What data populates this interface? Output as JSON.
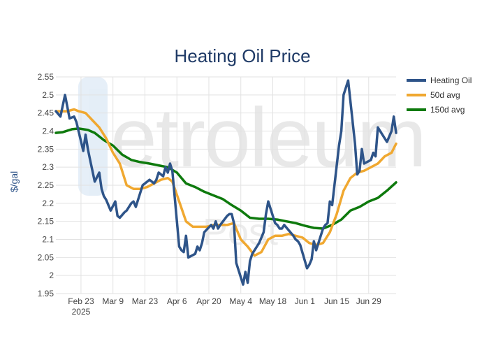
{
  "chart_data": {
    "type": "line",
    "title": "Heating Oil Price",
    "xlabel": "",
    "ylabel": "$/gal",
    "watermark": "Petroleum Post",
    "ylim": [
      1.95,
      2.55
    ],
    "y_ticks": [
      1.95,
      2,
      2.05,
      2.1,
      2.15,
      2.2,
      2.25,
      2.3,
      2.35,
      2.4,
      2.45,
      2.5,
      2.55
    ],
    "y_tick_labels": [
      "1.95",
      "2",
      "2.05",
      "2.1",
      "2.15",
      "2.2",
      "2.25",
      "2.3",
      "2.35",
      "2.4",
      "2.45",
      "2.5",
      "2.55"
    ],
    "x_range": [
      "2025-02-12",
      "2025-07-11"
    ],
    "x_ticks": [
      "2025-02-23",
      "2025-03-09",
      "2025-03-23",
      "2025-04-06",
      "2025-04-20",
      "2025-05-04",
      "2025-05-18",
      "2025-06-01",
      "2025-06-15",
      "2025-06-29"
    ],
    "x_tick_labels": [
      "Feb 23",
      "Mar 9",
      "Mar 23",
      "Apr 6",
      "Apr 20",
      "May 4",
      "May 18",
      "Jun 1",
      "Jun 15",
      "Jun 29"
    ],
    "x_tick_sublabels": [
      "2025",
      "",
      "",
      "",
      "",
      "",
      "",
      "",
      "",
      ""
    ],
    "grid": true,
    "legend_position": "top-right",
    "series": [
      {
        "name": "Heating Oil",
        "color": "#2e5489",
        "x": [
          "2025-02-12",
          "2025-02-14",
          "2025-02-16",
          "2025-02-18",
          "2025-02-20",
          "2025-02-21",
          "2025-02-24",
          "2025-02-25",
          "2025-02-26",
          "2025-02-27",
          "2025-02-28",
          "2025-03-01",
          "2025-03-03",
          "2025-03-04",
          "2025-03-05",
          "2025-03-06",
          "2025-03-08",
          "2025-03-10",
          "2025-03-11",
          "2025-03-12",
          "2025-03-14",
          "2025-03-15",
          "2025-03-17",
          "2025-03-18",
          "2025-03-19",
          "2025-03-22",
          "2025-03-25",
          "2025-03-26",
          "2025-03-27",
          "2025-03-28",
          "2025-03-29",
          "2025-03-31",
          "2025-04-01",
          "2025-04-02",
          "2025-04-03",
          "2025-04-04",
          "2025-04-07",
          "2025-04-08",
          "2025-04-09",
          "2025-04-10",
          "2025-04-11",
          "2025-04-14",
          "2025-04-15",
          "2025-04-16",
          "2025-04-17",
          "2025-04-18",
          "2025-04-21",
          "2025-04-22",
          "2025-04-23",
          "2025-04-24",
          "2025-04-25",
          "2025-04-28",
          "2025-04-29",
          "2025-04-30",
          "2025-05-01",
          "2025-05-02",
          "2025-05-05",
          "2025-05-06",
          "2025-05-07",
          "2025-05-08",
          "2025-05-09",
          "2025-05-12",
          "2025-05-13",
          "2025-05-14",
          "2025-05-15",
          "2025-05-16",
          "2025-05-19",
          "2025-05-20",
          "2025-05-21",
          "2025-05-22",
          "2025-05-23",
          "2025-05-27",
          "2025-05-28",
          "2025-05-29",
          "2025-05-30",
          "2025-06-02",
          "2025-06-03",
          "2025-06-04",
          "2025-06-05",
          "2025-06-06",
          "2025-06-09",
          "2025-06-10",
          "2025-06-11",
          "2025-06-12",
          "2025-06-13",
          "2025-06-16",
          "2025-06-17",
          "2025-06-18",
          "2025-06-19",
          "2025-06-20",
          "2025-06-23",
          "2025-06-24",
          "2025-06-25",
          "2025-06-26",
          "2025-06-27",
          "2025-06-30",
          "2025-07-01",
          "2025-07-02",
          "2025-07-03",
          "2025-07-07",
          "2025-07-08",
          "2025-07-09",
          "2025-07-10",
          "2025-07-11"
        ],
        "y": [
          2.455,
          2.44,
          2.5,
          2.435,
          2.44,
          2.425,
          2.345,
          2.39,
          2.35,
          2.32,
          2.29,
          2.26,
          2.285,
          2.24,
          2.22,
          2.21,
          2.18,
          2.205,
          2.165,
          2.16,
          2.175,
          2.18,
          2.2,
          2.205,
          2.19,
          2.25,
          2.265,
          2.26,
          2.255,
          2.265,
          2.285,
          2.275,
          2.3,
          2.285,
          2.31,
          2.29,
          2.08,
          2.07,
          2.065,
          2.11,
          2.05,
          2.06,
          2.08,
          2.07,
          2.09,
          2.12,
          2.14,
          2.13,
          2.15,
          2.13,
          2.14,
          2.165,
          2.17,
          2.17,
          2.145,
          2.035,
          1.975,
          2.01,
          1.98,
          2.04,
          2.06,
          2.09,
          2.105,
          2.12,
          2.17,
          2.205,
          2.145,
          2.14,
          2.13,
          2.13,
          2.14,
          2.11,
          2.1,
          2.095,
          2.085,
          2.02,
          2.03,
          2.045,
          2.095,
          2.07,
          2.13,
          2.14,
          2.145,
          2.205,
          2.195,
          2.36,
          2.4,
          2.5,
          2.52,
          2.54,
          2.365,
          2.28,
          2.29,
          2.35,
          2.31,
          2.32,
          2.34,
          2.33,
          2.41,
          2.37,
          2.385,
          2.4,
          2.44,
          2.395
        ]
      },
      {
        "name": "50d avg",
        "color": "#f0a830",
        "x": [
          "2025-02-12",
          "2025-02-14",
          "2025-02-17",
          "2025-02-20",
          "2025-02-22",
          "2025-02-25",
          "2025-02-28",
          "2025-03-03",
          "2025-03-06",
          "2025-03-09",
          "2025-03-12",
          "2025-03-15",
          "2025-03-18",
          "2025-03-21",
          "2025-03-24",
          "2025-03-27",
          "2025-03-30",
          "2025-04-02",
          "2025-04-04",
          "2025-04-07",
          "2025-04-10",
          "2025-04-13",
          "2025-04-16",
          "2025-04-19",
          "2025-04-22",
          "2025-04-25",
          "2025-04-28",
          "2025-05-01",
          "2025-05-04",
          "2025-05-07",
          "2025-05-10",
          "2025-05-13",
          "2025-05-16",
          "2025-05-19",
          "2025-05-22",
          "2025-05-25",
          "2025-05-28",
          "2025-05-31",
          "2025-06-03",
          "2025-06-06",
          "2025-06-09",
          "2025-06-12",
          "2025-06-15",
          "2025-06-18",
          "2025-06-21",
          "2025-06-24",
          "2025-06-27",
          "2025-06-30",
          "2025-07-03",
          "2025-07-06",
          "2025-07-09",
          "2025-07-11"
        ],
        "y": [
          2.455,
          2.455,
          2.455,
          2.46,
          2.455,
          2.45,
          2.43,
          2.41,
          2.38,
          2.34,
          2.31,
          2.25,
          2.24,
          2.24,
          2.245,
          2.255,
          2.265,
          2.27,
          2.26,
          2.205,
          2.15,
          2.135,
          2.135,
          2.135,
          2.14,
          2.14,
          2.14,
          2.145,
          2.1,
          2.08,
          2.055,
          2.065,
          2.1,
          2.11,
          2.11,
          2.115,
          2.11,
          2.105,
          2.09,
          2.085,
          2.09,
          2.12,
          2.17,
          2.235,
          2.27,
          2.285,
          2.29,
          2.3,
          2.31,
          2.33,
          2.34,
          2.365
        ]
      },
      {
        "name": "150d avg",
        "color": "#0e7a0d",
        "x": [
          "2025-02-12",
          "2025-02-15",
          "2025-02-19",
          "2025-02-22",
          "2025-02-26",
          "2025-03-01",
          "2025-03-05",
          "2025-03-09",
          "2025-03-13",
          "2025-03-17",
          "2025-03-21",
          "2025-03-25",
          "2025-03-29",
          "2025-04-02",
          "2025-04-06",
          "2025-04-10",
          "2025-04-14",
          "2025-04-18",
          "2025-04-22",
          "2025-04-26",
          "2025-04-30",
          "2025-05-04",
          "2025-05-08",
          "2025-05-12",
          "2025-05-16",
          "2025-05-20",
          "2025-05-24",
          "2025-05-28",
          "2025-06-01",
          "2025-06-05",
          "2025-06-09",
          "2025-06-13",
          "2025-06-17",
          "2025-06-21",
          "2025-06-25",
          "2025-06-29",
          "2025-07-03",
          "2025-07-07",
          "2025-07-11"
        ],
        "y": [
          2.395,
          2.397,
          2.405,
          2.407,
          2.403,
          2.395,
          2.375,
          2.36,
          2.335,
          2.32,
          2.314,
          2.31,
          2.305,
          2.3,
          2.285,
          2.255,
          2.245,
          2.232,
          2.222,
          2.212,
          2.195,
          2.18,
          2.16,
          2.157,
          2.157,
          2.155,
          2.15,
          2.145,
          2.138,
          2.132,
          2.13,
          2.14,
          2.155,
          2.18,
          2.19,
          2.205,
          2.215,
          2.235,
          2.258
        ]
      }
    ]
  }
}
